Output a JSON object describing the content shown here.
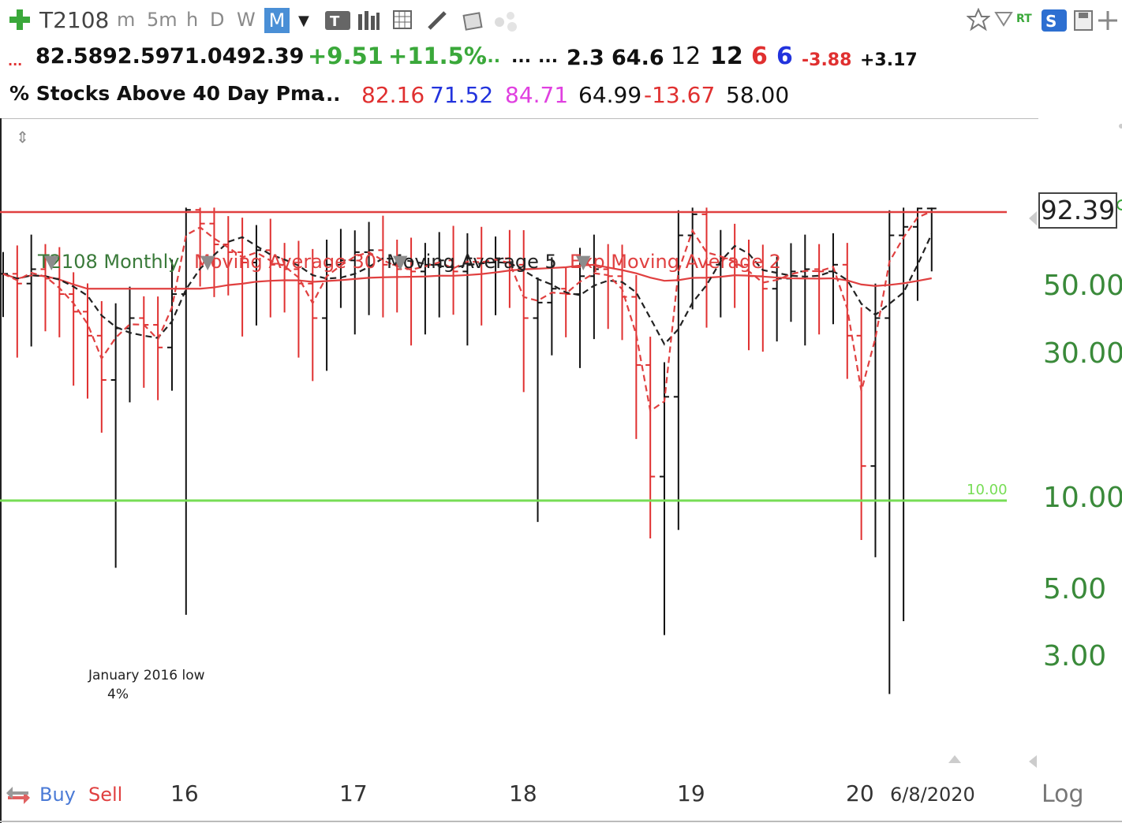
{
  "toolbar": {
    "symbol": "T2108",
    "intervals": [
      "m",
      "5m",
      "h",
      "D",
      "W",
      "M"
    ],
    "active_interval": "M"
  },
  "quote": {
    "leading_dots": "...",
    "open": "82.58",
    "high": "92.59",
    "low": "71.04",
    "close": "92.39",
    "change": "+9.51",
    "change_pct": "+11.5%",
    "dots1": "...",
    "dots2": "...",
    "dots3": "...",
    "v1": "2.3",
    "v2": "64.6",
    "v3": "12",
    "v4": "12",
    "v5": "6",
    "v6": "6",
    "v7": "-3.88",
    "v8": "+3.17"
  },
  "indicator": {
    "name": "% Stocks Above 40 Day Pma",
    "dots": "...",
    "v1": "82.16",
    "v2": "71.52",
    "v3": "84.71",
    "v4": "64.99",
    "v5": "-13.67",
    "v6": "58.00"
  },
  "legend": {
    "series": "T2108 Monthly",
    "ma30": "Moving Average 30",
    "ma5": "Moving Average 5",
    "ema2": "Exp Moving Average 2"
  },
  "price_box": "92.39",
  "green_line_label": "10.00",
  "annotation": {
    "line1": "January 2016 low",
    "line2": "4%"
  },
  "footer": {
    "buy": "Buy",
    "sell": "Sell",
    "log": "Log"
  },
  "chart_data": {
    "type": "line",
    "scale": "log",
    "y_tick_labels": [
      "50.00",
      "30.00",
      "10.00",
      "5.00",
      "3.00"
    ],
    "y_ticks": [
      50,
      30,
      10,
      5,
      3
    ],
    "x_tick_labels": [
      "16",
      "17",
      "18",
      "19",
      "20",
      "6/8/2020"
    ],
    "horizontal_lines": [
      {
        "value": 92.39,
        "color": "#e04040"
      },
      {
        "value": 10,
        "color": "#77dd55"
      }
    ],
    "colors": {
      "up": "#111111",
      "down": "#e03030",
      "ma30": "#e04040",
      "ma5": "#222222",
      "ema2": "#e04040"
    },
    "series": [
      {
        "name": "T2108 Monthly",
        "kind": "ohlc"
      },
      {
        "name": "Moving Average 30",
        "kind": "line"
      },
      {
        "name": "Moving Average 5",
        "kind": "dashed"
      },
      {
        "name": "Exp Moving Average 2",
        "kind": "dashed"
      }
    ]
  }
}
